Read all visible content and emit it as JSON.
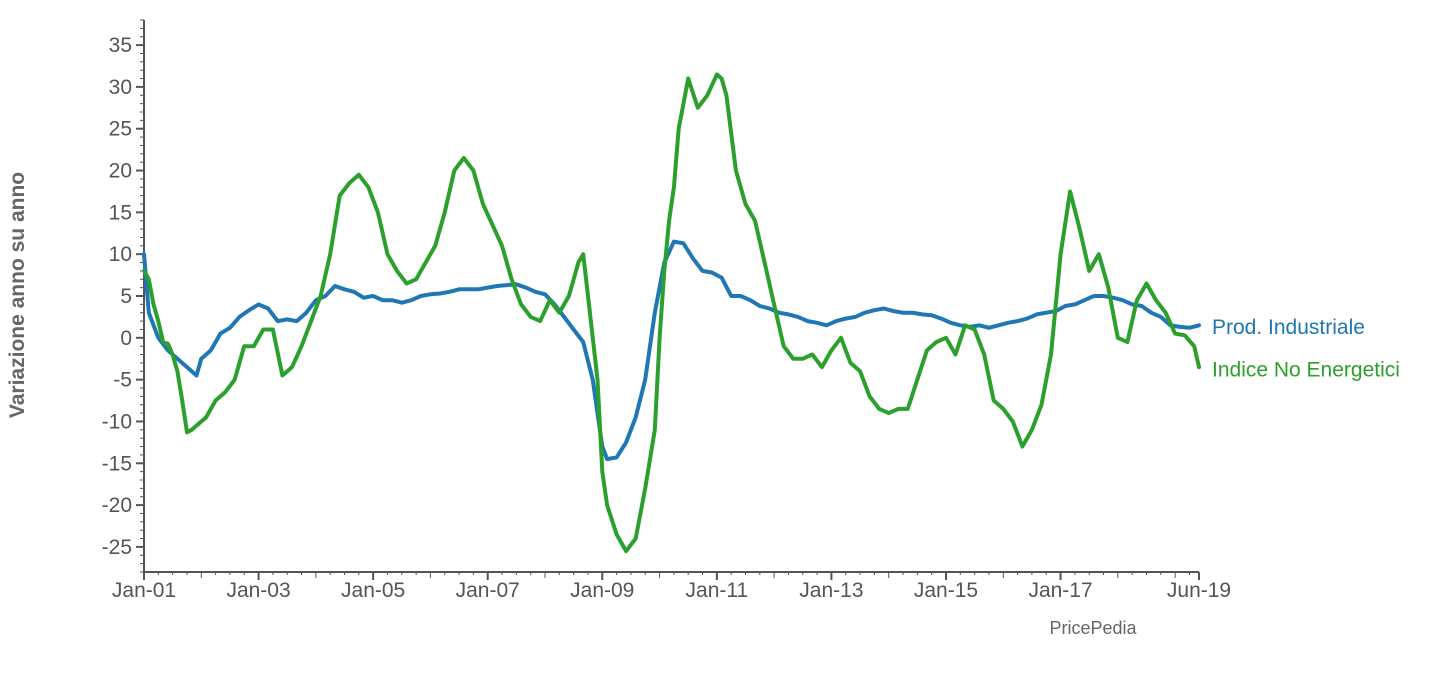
{
  "chart_data": {
    "type": "line",
    "title": "",
    "xlabel": "",
    "ylabel": "Variazione anno su anno",
    "source": "PricePedia",
    "xlim": [
      "2001-01",
      "2019-06"
    ],
    "ylim": [
      -28,
      38
    ],
    "y_ticks": [
      -25,
      -20,
      -15,
      -10,
      -5,
      0,
      5,
      10,
      15,
      20,
      25,
      30,
      35
    ],
    "x_ticks": [
      "2001-01",
      "2003-01",
      "2005-01",
      "2007-01",
      "2009-01",
      "2011-01",
      "2013-01",
      "2015-01",
      "2017-01",
      "2019-06"
    ],
    "x_tick_labels": [
      "Jan-01",
      "Jan-03",
      "Jan-05",
      "Jan-07",
      "Jan-09",
      "Jan-11",
      "Jan-13",
      "Jan-15",
      "Jan-17",
      "Jun-19"
    ],
    "grid": false,
    "legend": "end-of-line labels, right",
    "series": [
      {
        "name": "Prod. Industriale",
        "color": "#1f77b4",
        "points": [
          [
            "2001-01",
            10
          ],
          [
            "2001-02",
            3
          ],
          [
            "2001-04",
            0
          ],
          [
            "2001-06",
            -1.5
          ],
          [
            "2001-08",
            -2.5
          ],
          [
            "2001-10",
            -3.5
          ],
          [
            "2001-12",
            -4.5
          ],
          [
            "2002-01",
            -2.5
          ],
          [
            "2002-03",
            -1.5
          ],
          [
            "2002-05",
            0.5
          ],
          [
            "2002-07",
            1.2
          ],
          [
            "2002-09",
            2.5
          ],
          [
            "2002-11",
            3.3
          ],
          [
            "2003-01",
            4
          ],
          [
            "2003-03",
            3.5
          ],
          [
            "2003-05",
            2
          ],
          [
            "2003-07",
            2.2
          ],
          [
            "2003-09",
            2
          ],
          [
            "2003-11",
            3
          ],
          [
            "2004-01",
            4.5
          ],
          [
            "2004-03",
            5
          ],
          [
            "2004-05",
            6.2
          ],
          [
            "2004-07",
            5.8
          ],
          [
            "2004-09",
            5.5
          ],
          [
            "2004-11",
            4.8
          ],
          [
            "2005-01",
            5
          ],
          [
            "2005-03",
            4.5
          ],
          [
            "2005-05",
            4.5
          ],
          [
            "2005-07",
            4.2
          ],
          [
            "2005-09",
            4.5
          ],
          [
            "2005-11",
            5
          ],
          [
            "2006-01",
            5.2
          ],
          [
            "2006-03",
            5.3
          ],
          [
            "2006-05",
            5.5
          ],
          [
            "2006-07",
            5.8
          ],
          [
            "2006-09",
            5.8
          ],
          [
            "2006-11",
            5.8
          ],
          [
            "2007-01",
            6
          ],
          [
            "2007-03",
            6.2
          ],
          [
            "2007-05",
            6.3
          ],
          [
            "2007-07",
            6.4
          ],
          [
            "2007-09",
            6
          ],
          [
            "2007-11",
            5.5
          ],
          [
            "2008-01",
            5.2
          ],
          [
            "2008-03",
            4
          ],
          [
            "2008-05",
            2.5
          ],
          [
            "2008-07",
            1
          ],
          [
            "2008-09",
            -0.5
          ],
          [
            "2008-11",
            -5
          ],
          [
            "2009-01",
            -13
          ],
          [
            "2009-02",
            -14.5
          ],
          [
            "2009-04",
            -14.3
          ],
          [
            "2009-06",
            -12.5
          ],
          [
            "2009-08",
            -9.5
          ],
          [
            "2009-10",
            -5
          ],
          [
            "2009-12",
            3
          ],
          [
            "2010-02",
            9
          ],
          [
            "2010-04",
            11.5
          ],
          [
            "2010-06",
            11.3
          ],
          [
            "2010-08",
            9.5
          ],
          [
            "2010-10",
            8
          ],
          [
            "2010-12",
            7.8
          ],
          [
            "2011-02",
            7.2
          ],
          [
            "2011-04",
            5
          ],
          [
            "2011-06",
            5
          ],
          [
            "2011-08",
            4.5
          ],
          [
            "2011-10",
            3.8
          ],
          [
            "2011-12",
            3.5
          ],
          [
            "2012-02",
            3
          ],
          [
            "2012-04",
            2.8
          ],
          [
            "2012-06",
            2.5
          ],
          [
            "2012-08",
            2
          ],
          [
            "2012-10",
            1.8
          ],
          [
            "2012-12",
            1.5
          ],
          [
            "2013-02",
            2
          ],
          [
            "2013-04",
            2.3
          ],
          [
            "2013-06",
            2.5
          ],
          [
            "2013-08",
            3
          ],
          [
            "2013-10",
            3.3
          ],
          [
            "2013-12",
            3.5
          ],
          [
            "2014-02",
            3.2
          ],
          [
            "2014-04",
            3
          ],
          [
            "2014-06",
            3
          ],
          [
            "2014-08",
            2.8
          ],
          [
            "2014-10",
            2.7
          ],
          [
            "2014-12",
            2.3
          ],
          [
            "2015-02",
            1.8
          ],
          [
            "2015-04",
            1.5
          ],
          [
            "2015-06",
            1.3
          ],
          [
            "2015-08",
            1.5
          ],
          [
            "2015-10",
            1.2
          ],
          [
            "2015-12",
            1.5
          ],
          [
            "2016-02",
            1.8
          ],
          [
            "2016-04",
            2
          ],
          [
            "2016-06",
            2.3
          ],
          [
            "2016-08",
            2.8
          ],
          [
            "2016-10",
            3
          ],
          [
            "2016-12",
            3.2
          ],
          [
            "2017-02",
            3.8
          ],
          [
            "2017-04",
            4
          ],
          [
            "2017-06",
            4.5
          ],
          [
            "2017-08",
            5
          ],
          [
            "2017-10",
            5
          ],
          [
            "2017-12",
            4.8
          ],
          [
            "2018-02",
            4.5
          ],
          [
            "2018-04",
            4
          ],
          [
            "2018-06",
            3.8
          ],
          [
            "2018-08",
            3
          ],
          [
            "2018-10",
            2.5
          ],
          [
            "2018-12",
            1.5
          ],
          [
            "2019-02",
            1.3
          ],
          [
            "2019-04",
            1.2
          ],
          [
            "2019-06",
            1.5
          ]
        ]
      },
      {
        "name": "Indice No Energetici",
        "color": "#2ca02c",
        "points": [
          [
            "2001-01",
            8
          ],
          [
            "2001-02",
            7
          ],
          [
            "2001-03",
            4
          ],
          [
            "2001-04",
            2
          ],
          [
            "2001-05",
            -0.5
          ],
          [
            "2001-06",
            -0.7
          ],
          [
            "2001-07",
            -2
          ],
          [
            "2001-08",
            -4
          ],
          [
            "2001-09",
            -7.5
          ],
          [
            "2001-10",
            -11.3
          ],
          [
            "2001-11",
            -11
          ],
          [
            "2001-12",
            -10.5
          ],
          [
            "2002-02",
            -9.5
          ],
          [
            "2002-04",
            -7.5
          ],
          [
            "2002-06",
            -6.5
          ],
          [
            "2002-08",
            -5
          ],
          [
            "2002-10",
            -1
          ],
          [
            "2002-12",
            -1
          ],
          [
            "2003-02",
            1
          ],
          [
            "2003-04",
            1
          ],
          [
            "2003-06",
            -4.5
          ],
          [
            "2003-08",
            -3.5
          ],
          [
            "2003-10",
            -1
          ],
          [
            "2003-12",
            2
          ],
          [
            "2004-02",
            5
          ],
          [
            "2004-04",
            10
          ],
          [
            "2004-06",
            17
          ],
          [
            "2004-08",
            18.5
          ],
          [
            "2004-10",
            19.5
          ],
          [
            "2004-12",
            18
          ],
          [
            "2005-02",
            15
          ],
          [
            "2005-04",
            10
          ],
          [
            "2005-06",
            8
          ],
          [
            "2005-08",
            6.5
          ],
          [
            "2005-10",
            7
          ],
          [
            "2005-12",
            9
          ],
          [
            "2006-02",
            11
          ],
          [
            "2006-04",
            15
          ],
          [
            "2006-06",
            20
          ],
          [
            "2006-08",
            21.5
          ],
          [
            "2006-10",
            20
          ],
          [
            "2006-12",
            16
          ],
          [
            "2007-02",
            13.5
          ],
          [
            "2007-04",
            11
          ],
          [
            "2007-06",
            7
          ],
          [
            "2007-08",
            4
          ],
          [
            "2007-10",
            2.5
          ],
          [
            "2007-12",
            2
          ],
          [
            "2008-02",
            4.5
          ],
          [
            "2008-04",
            3
          ],
          [
            "2008-06",
            5
          ],
          [
            "2008-08",
            9
          ],
          [
            "2008-09",
            10
          ],
          [
            "2008-10",
            5
          ],
          [
            "2008-12",
            -5
          ],
          [
            "2009-01",
            -16
          ],
          [
            "2009-02",
            -20
          ],
          [
            "2009-04",
            -23.5
          ],
          [
            "2009-06",
            -25.5
          ],
          [
            "2009-08",
            -24
          ],
          [
            "2009-10",
            -18
          ],
          [
            "2009-12",
            -11
          ],
          [
            "2010-01",
            0
          ],
          [
            "2010-02",
            8
          ],
          [
            "2010-03",
            14
          ],
          [
            "2010-04",
            18
          ],
          [
            "2010-05",
            25
          ],
          [
            "2010-07",
            31
          ],
          [
            "2010-09",
            27.5
          ],
          [
            "2010-11",
            29
          ],
          [
            "2011-01",
            31.5
          ],
          [
            "2011-02",
            31
          ],
          [
            "2011-03",
            29
          ],
          [
            "2011-05",
            20
          ],
          [
            "2011-07",
            16
          ],
          [
            "2011-09",
            14
          ],
          [
            "2011-11",
            9
          ],
          [
            "2012-01",
            4
          ],
          [
            "2012-03",
            -1
          ],
          [
            "2012-05",
            -2.5
          ],
          [
            "2012-07",
            -2.5
          ],
          [
            "2012-09",
            -2
          ],
          [
            "2012-11",
            -3.5
          ],
          [
            "2013-01",
            -1.5
          ],
          [
            "2013-03",
            0
          ],
          [
            "2013-05",
            -3
          ],
          [
            "2013-07",
            -4
          ],
          [
            "2013-09",
            -7
          ],
          [
            "2013-11",
            -8.5
          ],
          [
            "2014-01",
            -9
          ],
          [
            "2014-03",
            -8.5
          ],
          [
            "2014-05",
            -8.5
          ],
          [
            "2014-07",
            -5
          ],
          [
            "2014-09",
            -1.5
          ],
          [
            "2014-11",
            -0.5
          ],
          [
            "2015-01",
            0
          ],
          [
            "2015-03",
            -2
          ],
          [
            "2015-05",
            1.5
          ],
          [
            "2015-07",
            1
          ],
          [
            "2015-09",
            -2
          ],
          [
            "2015-11",
            -7.5
          ],
          [
            "2016-01",
            -8.5
          ],
          [
            "2016-03",
            -10
          ],
          [
            "2016-05",
            -13
          ],
          [
            "2016-07",
            -11
          ],
          [
            "2016-09",
            -8
          ],
          [
            "2016-11",
            -2
          ],
          [
            "2017-01",
            10
          ],
          [
            "2017-03",
            17.5
          ],
          [
            "2017-05",
            13
          ],
          [
            "2017-07",
            8
          ],
          [
            "2017-09",
            10
          ],
          [
            "2017-11",
            6
          ],
          [
            "2018-01",
            0
          ],
          [
            "2018-03",
            -0.5
          ],
          [
            "2018-05",
            4.5
          ],
          [
            "2018-07",
            6.5
          ],
          [
            "2018-09",
            4.5
          ],
          [
            "2018-11",
            3
          ],
          [
            "2019-01",
            0.5
          ],
          [
            "2019-03",
            0.3
          ],
          [
            "2019-05",
            -1
          ],
          [
            "2019-06",
            -3.5
          ]
        ]
      }
    ]
  }
}
